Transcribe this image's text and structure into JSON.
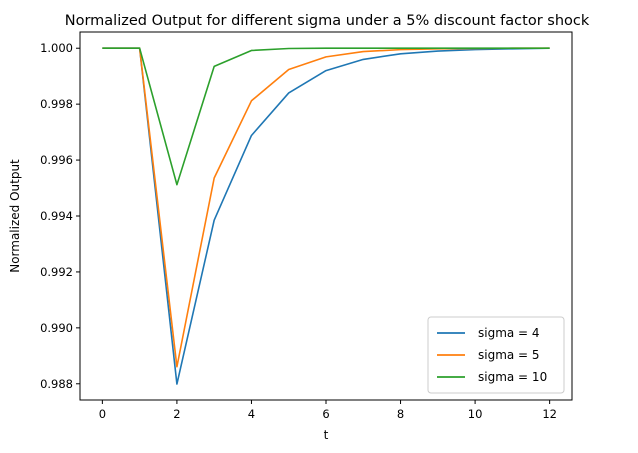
{
  "chart_data": {
    "type": "line",
    "title": "Normalized Output for different sigma under a 5% discount factor shock",
    "xlabel": "t",
    "ylabel": "Normalized Output",
    "xlim": [
      -0.6,
      12.6
    ],
    "ylim": [
      0.98742,
      1.00058
    ],
    "xticks": [
      0,
      2,
      4,
      6,
      8,
      10,
      12
    ],
    "yticks": [
      0.988,
      0.99,
      0.992,
      0.994,
      0.996,
      0.998,
      1.0
    ],
    "ytick_labels": [
      "0.988",
      "0.990",
      "0.992",
      "0.994",
      "0.996",
      "0.998",
      "1.000"
    ],
    "grid": false,
    "legend_position": "lower-right",
    "x": [
      0,
      1,
      2,
      3,
      4,
      5,
      6,
      7,
      8,
      9,
      10,
      11,
      12
    ],
    "series": [
      {
        "name": "sigma = 4",
        "color": "#1f77b4",
        "values": [
          1.0,
          1.0,
          0.98799,
          0.99385,
          0.99688,
          0.9984,
          0.9992,
          0.9996,
          0.9998,
          0.9999,
          0.99995,
          0.99998,
          1.0
        ]
      },
      {
        "name": "sigma = 5",
        "color": "#ff7f0e",
        "values": [
          1.0,
          1.0,
          0.98861,
          0.99536,
          0.99812,
          0.99924,
          0.99969,
          0.99988,
          0.99995,
          0.99998,
          0.99999,
          1.0,
          1.0
        ]
      },
      {
        "name": "sigma = 10",
        "color": "#2ca02c",
        "values": [
          1.0,
          1.0,
          0.99512,
          0.99935,
          0.99992,
          0.99999,
          1.0,
          1.0,
          1.0,
          1.0,
          1.0,
          1.0,
          1.0
        ]
      }
    ]
  }
}
